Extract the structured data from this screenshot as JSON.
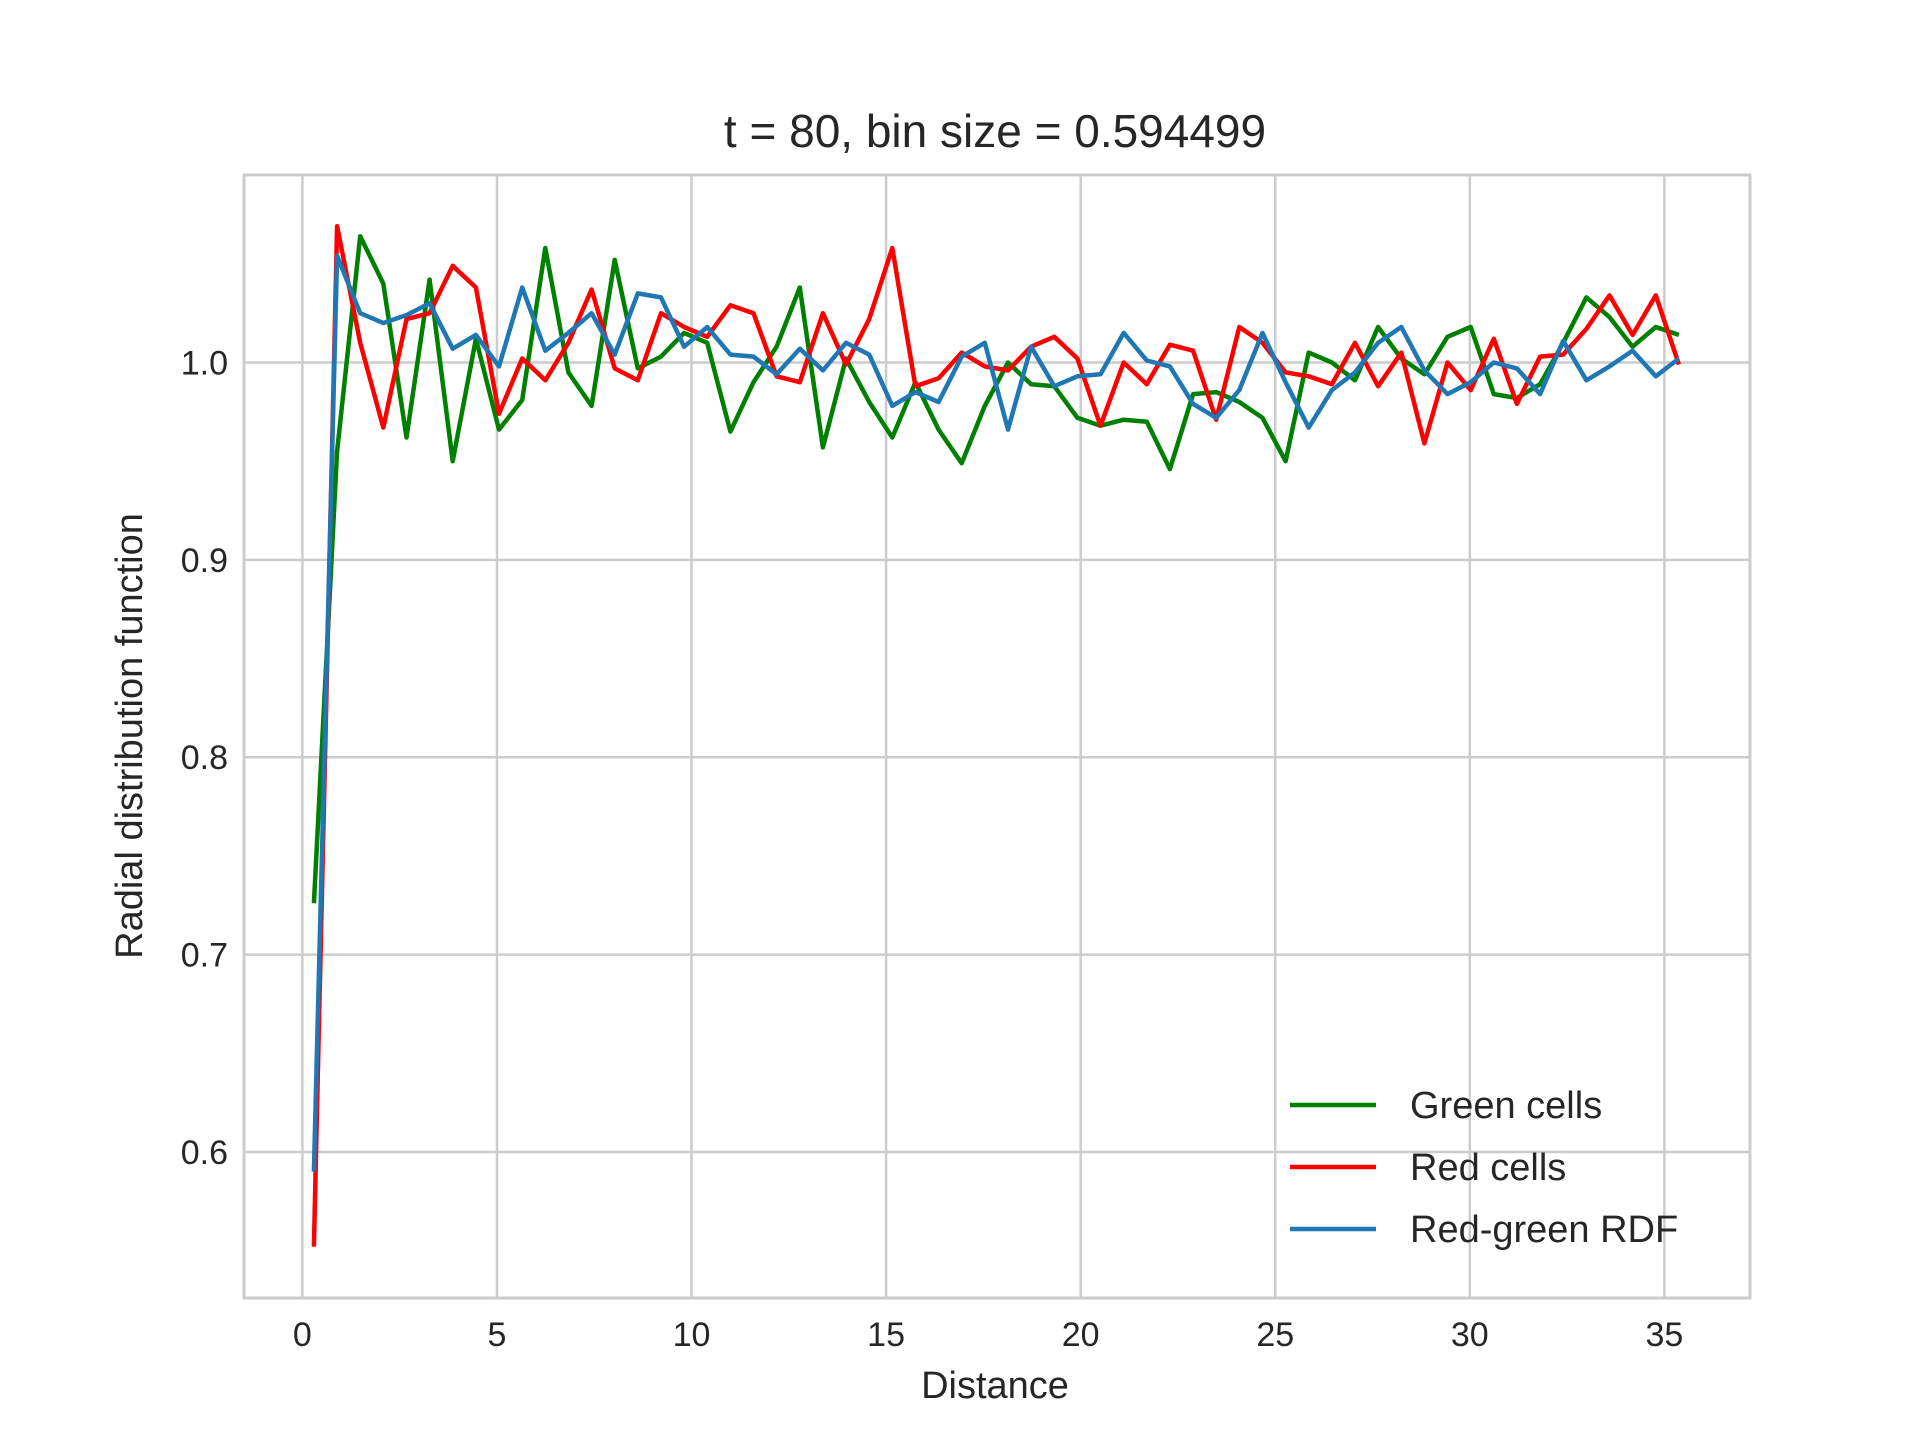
{
  "chart_data": {
    "type": "line",
    "title": "t = 80, bin size = 0.594499",
    "xlabel": "Distance",
    "ylabel": "Radial distribution function",
    "xlim": [
      -1.5,
      37.2
    ],
    "ylim": [
      0.526,
      1.095
    ],
    "xticks": [
      0,
      5,
      10,
      15,
      20,
      25,
      30,
      35
    ],
    "yticks": [
      0.6,
      0.7,
      0.8,
      0.9,
      1.0
    ],
    "xtick_labels": [
      "0",
      "5",
      "10",
      "15",
      "20",
      "25",
      "30",
      "35"
    ],
    "ytick_labels": [
      "0.6",
      "0.7",
      "0.8",
      "0.9",
      "1.0"
    ],
    "grid": true,
    "legend_position": "bottom-right",
    "x": [
      0.2972,
      0.8917,
      1.4862,
      2.0807,
      2.6752,
      3.2697,
      3.8642,
      4.4587,
      5.0532,
      5.6477,
      6.2422,
      6.8367,
      7.4312,
      8.0257,
      8.6202,
      9.2147,
      9.8092,
      10.4037,
      10.9982,
      11.5927,
      12.1872,
      12.7817,
      13.3762,
      13.9707,
      14.5652,
      15.1597,
      15.7542,
      16.3487,
      16.9432,
      17.5377,
      18.1322,
      18.7267,
      19.3212,
      19.9157,
      20.5102,
      21.1047,
      21.6992,
      22.2937,
      22.8882,
      23.4827,
      24.0772,
      24.6717,
      25.2662,
      25.8607,
      26.4552,
      27.0497,
      27.6442,
      28.2387,
      28.8332,
      29.4277,
      30.0222,
      30.6167,
      31.2112,
      31.8057,
      32.4002,
      32.9947,
      33.5892,
      34.1837,
      34.7782,
      35.3727
    ],
    "series": [
      {
        "name": "Green cells",
        "color": "#008000",
        "values": [
          0.726,
          0.955,
          1.064,
          1.04,
          0.962,
          1.042,
          0.95,
          1.012,
          0.966,
          0.981,
          1.058,
          0.995,
          0.978,
          1.052,
          0.997,
          1.003,
          1.015,
          1.01,
          0.965,
          0.99,
          1.008,
          1.038,
          0.957,
          1.002,
          0.98,
          0.962,
          0.99,
          0.966,
          0.949,
          0.978,
          1.0,
          0.989,
          0.988,
          0.972,
          0.968,
          0.971,
          0.97,
          0.946,
          0.984,
          0.985,
          0.98,
          0.972,
          0.95,
          1.005,
          1.0,
          0.991,
          1.018,
          1.002,
          0.994,
          1.013,
          1.018,
          0.984,
          0.982,
          0.989,
          1.01,
          1.033,
          1.023,
          1.008,
          1.018,
          1.014
        ]
      },
      {
        "name": "Red cells",
        "color": "#ff0000",
        "values": [
          0.552,
          1.069,
          1.01,
          0.967,
          1.022,
          1.025,
          1.049,
          1.038,
          0.974,
          1.002,
          0.991,
          1.01,
          1.037,
          0.997,
          0.991,
          1.025,
          1.018,
          1.013,
          1.029,
          1.025,
          0.993,
          0.99,
          1.025,
          0.999,
          1.022,
          1.058,
          0.988,
          0.992,
          1.005,
          0.998,
          0.996,
          1.008,
          1.013,
          1.002,
          0.968,
          1.0,
          0.989,
          1.009,
          1.006,
          0.971,
          1.018,
          1.01,
          0.995,
          0.993,
          0.989,
          1.01,
          0.988,
          1.005,
          0.959,
          1.0,
          0.986,
          1.012,
          0.979,
          1.003,
          1.004,
          1.017,
          1.034,
          1.014,
          1.034,
          0.999
        ]
      },
      {
        "name": "Red-green RDF",
        "color": "#1f77b4",
        "values": [
          0.59,
          1.054,
          1.025,
          1.02,
          1.024,
          1.03,
          1.007,
          1.014,
          0.998,
          1.038,
          1.006,
          1.015,
          1.025,
          1.004,
          1.035,
          1.033,
          1.008,
          1.018,
          1.004,
          1.003,
          0.994,
          1.007,
          0.996,
          1.01,
          1.004,
          0.978,
          0.985,
          0.98,
          1.003,
          1.01,
          0.966,
          1.008,
          0.988,
          0.993,
          0.994,
          1.015,
          1.001,
          0.998,
          0.979,
          0.972,
          0.986,
          1.015,
          0.99,
          0.967,
          0.986,
          0.995,
          1.01,
          1.018,
          0.996,
          0.984,
          0.99,
          1.0,
          0.997,
          0.984,
          1.011,
          0.991,
          0.998,
          1.006,
          0.993,
          1.002
        ]
      }
    ]
  }
}
